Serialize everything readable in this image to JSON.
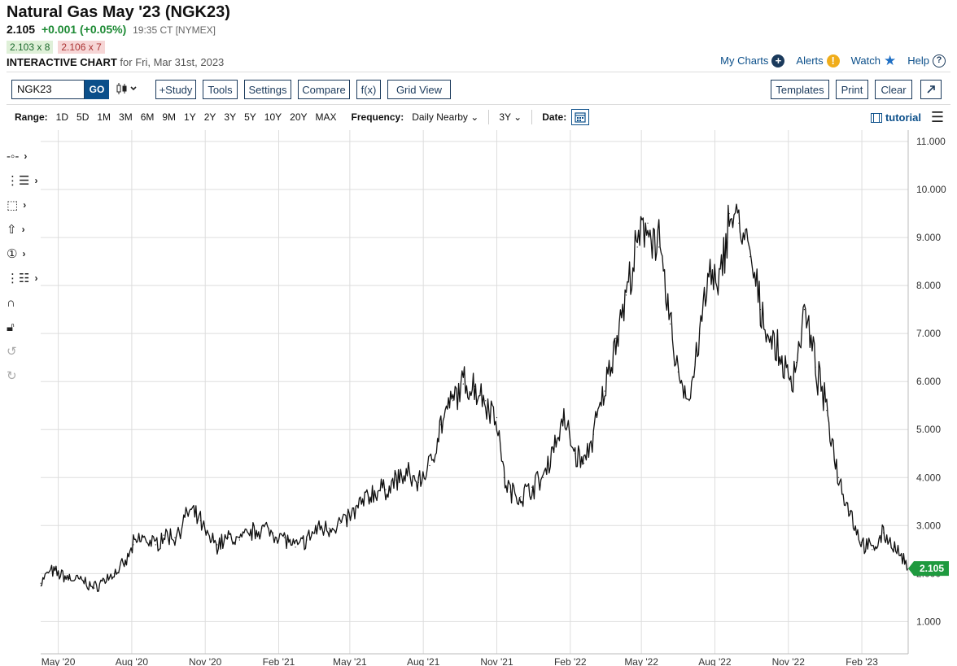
{
  "header": {
    "title": "Natural Gas May '23 (NGK23)",
    "last": "2.105",
    "change": "+0.001 (+0.05%)",
    "time": "19:35 CT [NYMEX]",
    "bid": "2.103 x 8",
    "ask": "2.106 x 7",
    "chart_label": "INTERACTIVE CHART",
    "chart_date": "for Fri, Mar 31st, 2023"
  },
  "toplinks": {
    "my_charts": "My Charts",
    "alerts": "Alerts",
    "watch": "Watch",
    "help": "Help"
  },
  "toolbar": {
    "symbol": "NGK23",
    "go": "GO",
    "study": "+Study",
    "tools": "Tools",
    "settings": "Settings",
    "compare": "Compare",
    "fx": "f(x)",
    "grid_view": "Grid View",
    "templates": "Templates",
    "print": "Print",
    "clear": "Clear"
  },
  "range": {
    "label": "Range:",
    "options": [
      "1D",
      "5D",
      "1M",
      "3M",
      "6M",
      "9M",
      "1Y",
      "2Y",
      "3Y",
      "5Y",
      "10Y",
      "20Y",
      "MAX"
    ],
    "frequency_label": "Frequency:",
    "frequency_value": "Daily Nearby",
    "period_value": "3Y",
    "date_label": "Date:",
    "tutorial": "tutorial"
  },
  "colors": {
    "price_line": "#111111",
    "last_badge": "#1f9a3f",
    "grid": "#dddddd",
    "link": "#0b4f8a"
  },
  "chart_data": {
    "type": "line",
    "title": "",
    "ylim": [
      0.6,
      11.0
    ],
    "y_ticks": [
      "1.000",
      "2.000",
      "3.000",
      "4.000",
      "5.000",
      "6.000",
      "7.000",
      "8.000",
      "9.000",
      "10.000",
      "11.000"
    ],
    "x_ticks": [
      "May '20",
      "Aug '20",
      "Nov '20",
      "Feb '21",
      "May '21",
      "Aug '21",
      "Nov '21",
      "Feb '22",
      "May '22",
      "Aug '22",
      "Nov '22",
      "Feb '23"
    ],
    "last_value_label": "2.105",
    "series": [
      {
        "x": [
          "2020-04-09",
          "2020-04-20",
          "2020-05-01",
          "2020-05-15",
          "2020-06-01",
          "2020-06-15",
          "2020-06-26",
          "2020-07-10",
          "2020-07-24",
          "2020-08-03",
          "2020-08-14",
          "2020-08-31",
          "2020-09-10",
          "2020-09-24",
          "2020-10-12",
          "2020-10-26",
          "2020-11-02",
          "2020-11-16",
          "2020-11-30",
          "2020-12-14",
          "2020-12-28",
          "2021-01-11",
          "2021-01-25",
          "2021-02-08",
          "2021-02-22",
          "2021-03-08",
          "2021-03-22",
          "2021-04-05",
          "2021-04-19",
          "2021-05-03",
          "2021-05-17",
          "2021-06-01",
          "2021-06-15",
          "2021-06-28",
          "2021-07-12",
          "2021-07-26",
          "2021-08-09",
          "2021-08-23",
          "2021-09-07",
          "2021-09-20",
          "2021-10-04",
          "2021-10-18",
          "2021-11-01",
          "2021-11-10",
          "2021-11-18",
          "2021-12-01",
          "2021-12-15",
          "2021-12-29",
          "2022-01-10",
          "2022-01-24",
          "2022-02-07",
          "2022-02-18",
          "2022-03-02",
          "2022-03-16",
          "2022-03-30",
          "2022-04-12",
          "2022-04-26",
          "2022-05-09",
          "2022-05-23",
          "2022-06-06",
          "2022-06-16",
          "2022-06-30",
          "2022-07-13",
          "2022-07-26",
          "2022-08-05",
          "2022-08-19",
          "2022-08-31",
          "2022-09-14",
          "2022-09-27",
          "2022-10-10",
          "2022-10-24",
          "2022-11-04",
          "2022-11-11",
          "2022-11-21",
          "2022-12-05",
          "2022-12-19",
          "2023-01-03",
          "2023-01-17",
          "2023-01-31",
          "2023-02-14",
          "2023-02-28",
          "2023-03-14",
          "2023-03-31"
        ],
        "values": [
          1.8,
          2.05,
          2.0,
          1.9,
          1.85,
          1.7,
          1.85,
          2.0,
          2.2,
          2.6,
          2.75,
          2.6,
          2.8,
          2.75,
          3.3,
          3.1,
          2.8,
          2.6,
          2.75,
          2.7,
          2.85,
          2.95,
          2.85,
          2.75,
          2.55,
          2.7,
          2.95,
          2.95,
          3.05,
          3.2,
          3.5,
          3.7,
          3.75,
          3.95,
          4.05,
          3.9,
          4.25,
          5.1,
          5.6,
          5.95,
          5.9,
          5.6,
          5.25,
          4.0,
          3.7,
          3.6,
          3.8,
          4.0,
          4.6,
          5.2,
          4.5,
          4.3,
          4.9,
          5.8,
          6.9,
          7.8,
          8.8,
          9.3,
          8.8,
          7.2,
          6.2,
          5.6,
          7.0,
          8.3,
          7.8,
          9.5,
          9.3,
          8.6,
          7.5,
          6.9,
          6.4,
          6.0,
          6.4,
          7.5,
          6.3,
          5.4,
          4.0,
          3.3,
          2.65,
          2.5,
          2.85,
          2.55,
          2.105
        ]
      }
    ]
  }
}
